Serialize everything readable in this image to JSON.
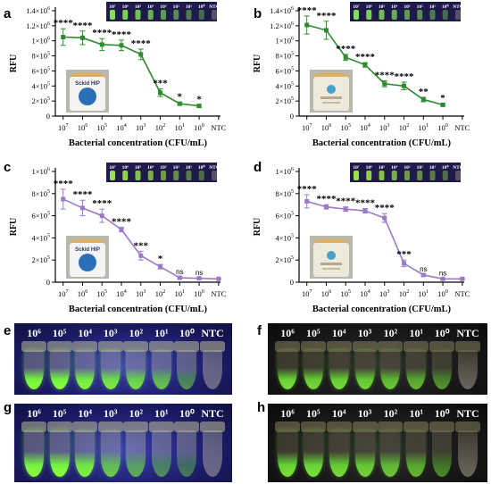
{
  "chart_data": [
    {
      "panel": "a",
      "type": "line",
      "color": "#2e8b2e",
      "categories": [
        "10^7",
        "10^6",
        "10^5",
        "10^4",
        "10^3",
        "10^2",
        "10^1",
        "10^0",
        "NTC"
      ],
      "category_base": [
        "10",
        "10",
        "10",
        "10",
        "10",
        "10",
        "10",
        "10",
        "NTC"
      ],
      "category_exp": [
        "7",
        "6",
        "5",
        "4",
        "3",
        "2",
        "1",
        "0",
        ""
      ],
      "values": [
        1050000,
        1040000,
        950000,
        940000,
        820000,
        310000,
        165000,
        135000,
        null
      ],
      "errors": [
        110000,
        90000,
        80000,
        70000,
        70000,
        50000,
        20000,
        15000,
        null
      ],
      "significance": [
        "****",
        "****",
        "****",
        "****",
        "****",
        "***",
        "*",
        "*",
        ""
      ],
      "ylabel": "RFU",
      "xlabel": "Bacterial concentration (CFU/mL)",
      "ylim": [
        0,
        1400000
      ],
      "ytick_mantissa": [
        "0",
        "2×10",
        "4×10",
        "6×10",
        "8×10",
        "1×10",
        "1.2×10",
        "1.4×10"
      ],
      "ytick_exp": [
        "",
        "5",
        "5",
        "5",
        "5",
        "6",
        "6",
        "6"
      ],
      "yticks": [
        0,
        200000,
        400000,
        600000,
        800000,
        1000000,
        1200000,
        1400000
      ],
      "inset_labels": [
        "10⁷",
        "10⁶",
        "10⁵",
        "10⁴",
        "10³",
        "10²",
        "10¹",
        "10⁰",
        "NTC"
      ],
      "can_text": "Sckid HIP"
    },
    {
      "panel": "b",
      "type": "line",
      "color": "#2e8b2e",
      "categories": [
        "10^7",
        "10^6",
        "10^5",
        "10^4",
        "10^3",
        "10^2",
        "10^1",
        "10^0",
        "NTC"
      ],
      "category_base": [
        "10",
        "10",
        "10",
        "10",
        "10",
        "10",
        "10",
        "10",
        "NTC"
      ],
      "category_exp": [
        "7",
        "6",
        "5",
        "4",
        "3",
        "2",
        "1",
        "0",
        ""
      ],
      "values": [
        1210000,
        1140000,
        780000,
        680000,
        430000,
        400000,
        220000,
        150000,
        null
      ],
      "errors": [
        120000,
        120000,
        40000,
        30000,
        40000,
        50000,
        30000,
        15000,
        null
      ],
      "significance": [
        "****",
        "****",
        "****",
        "****",
        "****",
        "****",
        "**",
        "*",
        ""
      ],
      "ylabel": "RFU",
      "xlabel": "Bacterial concentration (CFU/mL)",
      "ylim": [
        0,
        1400000
      ],
      "ytick_mantissa": [
        "0",
        "2×10",
        "4×10",
        "6×10",
        "8×10",
        "1×10",
        "1.2×10",
        "1.4×10"
      ],
      "ytick_exp": [
        "",
        "5",
        "5",
        "5",
        "5",
        "6",
        "6",
        "6"
      ],
      "yticks": [
        0,
        200000,
        400000,
        600000,
        800000,
        1000000,
        1200000,
        1400000
      ],
      "inset_labels": [
        "10⁷",
        "10⁶",
        "10⁵",
        "10⁴",
        "10³",
        "10²",
        "10¹",
        "10⁰",
        "NTC"
      ],
      "can_text": ""
    },
    {
      "panel": "c",
      "type": "line",
      "color": "#9c7ac8",
      "categories": [
        "10^7",
        "10^6",
        "10^5",
        "10^4",
        "10^3",
        "10^2",
        "10^1",
        "10^0",
        "NTC"
      ],
      "category_base": [
        "10",
        "10",
        "10",
        "10",
        "10",
        "10",
        "10",
        "10",
        "NTC"
      ],
      "category_exp": [
        "7",
        "6",
        "5",
        "4",
        "3",
        "2",
        "1",
        "0",
        ""
      ],
      "values": [
        750000,
        670000,
        600000,
        475000,
        240000,
        140000,
        40000,
        35000,
        30000
      ],
      "errors": [
        90000,
        70000,
        60000,
        20000,
        40000,
        20000,
        8000,
        5000,
        3000
      ],
      "significance": [
        "****",
        "****",
        "****",
        "****",
        "***",
        "*",
        "ns",
        "ns",
        ""
      ],
      "ylabel": "RFU",
      "xlabel": "Bacterial concentration (CFU/mL)",
      "ylim": [
        0,
        1000000
      ],
      "ytick_mantissa": [
        "0",
        "2×10",
        "4×10",
        "6×10",
        "8×10",
        "1×10"
      ],
      "ytick_exp": [
        "",
        "5",
        "5",
        "5",
        "5",
        "6"
      ],
      "yticks": [
        0,
        200000,
        400000,
        600000,
        800000,
        1000000
      ],
      "inset_labels": [
        "10⁷",
        "10⁶",
        "10⁵",
        "10⁴",
        "10³",
        "10²",
        "10¹",
        "10⁰",
        "NTC"
      ],
      "can_text": "Sckid HIP"
    },
    {
      "panel": "d",
      "type": "line",
      "color": "#9c7ac8",
      "categories": [
        "10^7",
        "10^6",
        "10^5",
        "10^4",
        "10^3",
        "10^2",
        "10^1",
        "10^0",
        "NTC"
      ],
      "category_base": [
        "10",
        "10",
        "10",
        "10",
        "10",
        "10",
        "10",
        "10",
        "NTC"
      ],
      "category_exp": [
        "7",
        "6",
        "5",
        "4",
        "3",
        "2",
        "1",
        "0",
        ""
      ],
      "values": [
        730000,
        680000,
        660000,
        645000,
        580000,
        170000,
        65000,
        30000,
        30000
      ],
      "errors": [
        60000,
        20000,
        20000,
        20000,
        40000,
        30000,
        8000,
        5000,
        3000
      ],
      "significance": [
        "****",
        "****",
        "****",
        "****",
        "****",
        "***",
        "ns",
        "ns",
        ""
      ],
      "ylabel": "RFU",
      "xlabel": "Bacterial concentration (CFU/mL)",
      "ylim": [
        0,
        1000000
      ],
      "ytick_mantissa": [
        "0",
        "2×10",
        "4×10",
        "6×10",
        "8×10",
        "1×10"
      ],
      "ytick_exp": [
        "",
        "5",
        "5",
        "5",
        "5",
        "6"
      ],
      "yticks": [
        0,
        200000,
        400000,
        600000,
        800000,
        1000000
      ],
      "inset_labels": [
        "10⁷",
        "10⁶",
        "10⁵",
        "10⁴",
        "10³",
        "10²",
        "10¹",
        "10⁰",
        "NTC"
      ],
      "can_text": ""
    }
  ],
  "photos": [
    {
      "panel": "e",
      "labels": [
        "10⁶",
        "10⁵",
        "10⁴",
        "10³",
        "10²",
        "10¹",
        "10⁰",
        "NTC"
      ],
      "glow": [
        1.0,
        1.0,
        0.95,
        0.85,
        0.75,
        0.55,
        0.25,
        0.0
      ],
      "tint": "#7fff3a"
    },
    {
      "panel": "f",
      "labels": [
        "10⁶",
        "10⁵",
        "10⁴",
        "10³",
        "10²",
        "10¹",
        "10⁰",
        "NTC"
      ],
      "glow": [
        0.8,
        0.75,
        0.75,
        0.7,
        0.6,
        0.5,
        0.3,
        0.0
      ],
      "tint": "#5fe84a"
    },
    {
      "panel": "g",
      "labels": [
        "10⁶",
        "10⁵",
        "10⁴",
        "10³",
        "10²",
        "10¹",
        "10⁰",
        "NTC"
      ],
      "glow": [
        1.0,
        1.0,
        0.9,
        0.6,
        0.4,
        0.2,
        0.1,
        0.0
      ],
      "tint": "#8cff3a"
    },
    {
      "panel": "h",
      "labels": [
        "10⁶",
        "10⁵",
        "10⁴",
        "10³",
        "10²",
        "10¹",
        "10⁰",
        "NTC"
      ],
      "glow": [
        0.8,
        0.8,
        0.75,
        0.7,
        0.6,
        0.5,
        0.2,
        0.0
      ],
      "tint": "#5ee846"
    }
  ]
}
